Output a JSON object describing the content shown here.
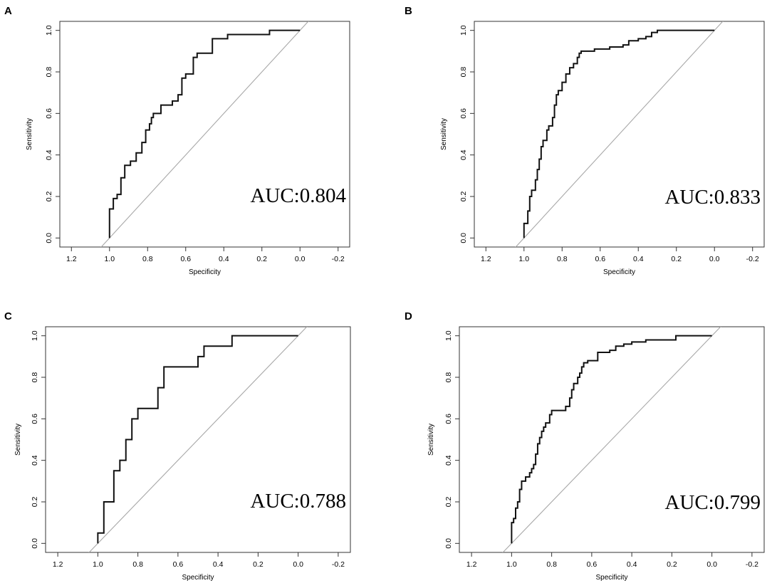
{
  "figure": {
    "colors": {
      "curve": "#111111",
      "diagonal": "#a8a8a8",
      "frame": "#333333",
      "text": "#000000"
    }
  },
  "chart_data": [
    {
      "type": "line",
      "panel": "A",
      "xlabel": "Specificity",
      "ylabel": "Sensitivity",
      "xlim": [
        1.2,
        -0.2
      ],
      "ylim": [
        0,
        1
      ],
      "x_ticks": [
        "1.2",
        "1.0",
        "0.8",
        "0.6",
        "0.4",
        "0.2",
        "0.0",
        "-0.2"
      ],
      "y_ticks": [
        "0.0",
        "0.2",
        "0.4",
        "0.6",
        "0.8",
        "1.0"
      ],
      "annotation": "AUC:0.804",
      "reference_line": {
        "from": [
          1,
          0
        ],
        "to": [
          0,
          1
        ]
      },
      "series": [
        {
          "name": "ROC",
          "points": [
            [
              1,
              0
            ],
            [
              1,
              0.14
            ],
            [
              0.98,
              0.14
            ],
            [
              0.98,
              0.19
            ],
            [
              0.96,
              0.19
            ],
            [
              0.96,
              0.21
            ],
            [
              0.94,
              0.21
            ],
            [
              0.94,
              0.29
            ],
            [
              0.92,
              0.29
            ],
            [
              0.92,
              0.35
            ],
            [
              0.89,
              0.35
            ],
            [
              0.89,
              0.37
            ],
            [
              0.86,
              0.37
            ],
            [
              0.86,
              0.41
            ],
            [
              0.83,
              0.41
            ],
            [
              0.83,
              0.46
            ],
            [
              0.81,
              0.46
            ],
            [
              0.81,
              0.52
            ],
            [
              0.79,
              0.52
            ],
            [
              0.79,
              0.55
            ],
            [
              0.78,
              0.55
            ],
            [
              0.78,
              0.58
            ],
            [
              0.77,
              0.58
            ],
            [
              0.77,
              0.6
            ],
            [
              0.73,
              0.6
            ],
            [
              0.73,
              0.64
            ],
            [
              0.67,
              0.64
            ],
            [
              0.67,
              0.66
            ],
            [
              0.64,
              0.66
            ],
            [
              0.64,
              0.69
            ],
            [
              0.62,
              0.69
            ],
            [
              0.62,
              0.77
            ],
            [
              0.6,
              0.77
            ],
            [
              0.6,
              0.79
            ],
            [
              0.56,
              0.79
            ],
            [
              0.56,
              0.87
            ],
            [
              0.54,
              0.87
            ],
            [
              0.54,
              0.89
            ],
            [
              0.46,
              0.89
            ],
            [
              0.46,
              0.96
            ],
            [
              0.38,
              0.96
            ],
            [
              0.38,
              0.98
            ],
            [
              0.16,
              0.98
            ],
            [
              0.16,
              1
            ],
            [
              0,
              1
            ]
          ]
        }
      ]
    },
    {
      "type": "line",
      "panel": "B",
      "xlabel": "Specificity",
      "ylabel": "Sensitivity",
      "xlim": [
        1.2,
        -0.2
      ],
      "ylim": [
        0,
        1
      ],
      "x_ticks": [
        "1.2",
        "1.0",
        "0.8",
        "0.6",
        "0.4",
        "0.2",
        "0.0",
        "-0.2"
      ],
      "y_ticks": [
        "0.0",
        "0.2",
        "0.4",
        "0.6",
        "0.8",
        "1.0"
      ],
      "annotation": "AUC:0.833",
      "reference_line": {
        "from": [
          1,
          0
        ],
        "to": [
          0,
          1
        ]
      },
      "series": [
        {
          "name": "ROC",
          "points": [
            [
              1,
              0
            ],
            [
              1,
              0.07
            ],
            [
              0.98,
              0.07
            ],
            [
              0.98,
              0.13
            ],
            [
              0.97,
              0.13
            ],
            [
              0.97,
              0.2
            ],
            [
              0.96,
              0.2
            ],
            [
              0.96,
              0.23
            ],
            [
              0.94,
              0.23
            ],
            [
              0.94,
              0.28
            ],
            [
              0.93,
              0.28
            ],
            [
              0.93,
              0.33
            ],
            [
              0.92,
              0.33
            ],
            [
              0.92,
              0.38
            ],
            [
              0.91,
              0.38
            ],
            [
              0.91,
              0.44
            ],
            [
              0.9,
              0.44
            ],
            [
              0.9,
              0.47
            ],
            [
              0.88,
              0.47
            ],
            [
              0.88,
              0.52
            ],
            [
              0.87,
              0.52
            ],
            [
              0.87,
              0.54
            ],
            [
              0.85,
              0.54
            ],
            [
              0.85,
              0.58
            ],
            [
              0.84,
              0.58
            ],
            [
              0.84,
              0.64
            ],
            [
              0.83,
              0.64
            ],
            [
              0.83,
              0.69
            ],
            [
              0.82,
              0.69
            ],
            [
              0.82,
              0.71
            ],
            [
              0.8,
              0.71
            ],
            [
              0.8,
              0.75
            ],
            [
              0.78,
              0.75
            ],
            [
              0.78,
              0.79
            ],
            [
              0.76,
              0.79
            ],
            [
              0.76,
              0.82
            ],
            [
              0.74,
              0.82
            ],
            [
              0.74,
              0.84
            ],
            [
              0.72,
              0.84
            ],
            [
              0.72,
              0.87
            ],
            [
              0.71,
              0.87
            ],
            [
              0.71,
              0.89
            ],
            [
              0.7,
              0.89
            ],
            [
              0.7,
              0.9
            ],
            [
              0.63,
              0.9
            ],
            [
              0.63,
              0.91
            ],
            [
              0.55,
              0.91
            ],
            [
              0.55,
              0.92
            ],
            [
              0.48,
              0.92
            ],
            [
              0.48,
              0.93
            ],
            [
              0.45,
              0.93
            ],
            [
              0.45,
              0.95
            ],
            [
              0.4,
              0.95
            ],
            [
              0.4,
              0.96
            ],
            [
              0.36,
              0.96
            ],
            [
              0.36,
              0.97
            ],
            [
              0.33,
              0.97
            ],
            [
              0.33,
              0.99
            ],
            [
              0.3,
              0.99
            ],
            [
              0.3,
              1
            ],
            [
              0,
              1
            ]
          ]
        }
      ]
    },
    {
      "type": "line",
      "panel": "C",
      "xlabel": "Specificity",
      "ylabel": "Sensitivity",
      "xlim": [
        1.2,
        -0.2
      ],
      "ylim": [
        0,
        1
      ],
      "x_ticks": [
        "1.2",
        "1.0",
        "0.8",
        "0.6",
        "0.4",
        "0.2",
        "0.0",
        "-0.2"
      ],
      "y_ticks": [
        "0.0",
        "0.2",
        "0.4",
        "0.6",
        "0.8",
        "1.0"
      ],
      "annotation": "AUC:0.788",
      "reference_line": {
        "from": [
          1,
          0
        ],
        "to": [
          0,
          1
        ]
      },
      "series": [
        {
          "name": "ROC",
          "points": [
            [
              1,
              0
            ],
            [
              1,
              0.05
            ],
            [
              0.97,
              0.05
            ],
            [
              0.97,
              0.2
            ],
            [
              0.92,
              0.2
            ],
            [
              0.92,
              0.35
            ],
            [
              0.89,
              0.35
            ],
            [
              0.89,
              0.4
            ],
            [
              0.86,
              0.4
            ],
            [
              0.86,
              0.5
            ],
            [
              0.83,
              0.5
            ],
            [
              0.83,
              0.6
            ],
            [
              0.8,
              0.6
            ],
            [
              0.8,
              0.65
            ],
            [
              0.7,
              0.65
            ],
            [
              0.7,
              0.75
            ],
            [
              0.67,
              0.75
            ],
            [
              0.67,
              0.85
            ],
            [
              0.5,
              0.85
            ],
            [
              0.5,
              0.9
            ],
            [
              0.47,
              0.9
            ],
            [
              0.47,
              0.95
            ],
            [
              0.33,
              0.95
            ],
            [
              0.33,
              1
            ],
            [
              0,
              1
            ]
          ]
        }
      ]
    },
    {
      "type": "line",
      "panel": "D",
      "xlabel": "Specificity",
      "ylabel": "Sensitivity",
      "xlim": [
        1.2,
        -0.2
      ],
      "ylim": [
        0,
        1
      ],
      "x_ticks": [
        "1.2",
        "1.0",
        "0.8",
        "0.6",
        "0.4",
        "0.2",
        "0.0",
        "-0.2"
      ],
      "y_ticks": [
        "0.0",
        "0.2",
        "0.4",
        "0.6",
        "0.8",
        "1.0"
      ],
      "annotation": "AUC:0.799",
      "reference_line": {
        "from": [
          1,
          0
        ],
        "to": [
          0,
          1
        ]
      },
      "series": [
        {
          "name": "ROC",
          "points": [
            [
              1,
              0
            ],
            [
              1,
              0.1
            ],
            [
              0.99,
              0.1
            ],
            [
              0.99,
              0.12
            ],
            [
              0.98,
              0.12
            ],
            [
              0.98,
              0.17
            ],
            [
              0.97,
              0.17
            ],
            [
              0.97,
              0.2
            ],
            [
              0.96,
              0.2
            ],
            [
              0.96,
              0.26
            ],
            [
              0.95,
              0.26
            ],
            [
              0.95,
              0.3
            ],
            [
              0.93,
              0.3
            ],
            [
              0.93,
              0.32
            ],
            [
              0.91,
              0.32
            ],
            [
              0.91,
              0.34
            ],
            [
              0.9,
              0.34
            ],
            [
              0.9,
              0.36
            ],
            [
              0.89,
              0.36
            ],
            [
              0.89,
              0.38
            ],
            [
              0.88,
              0.38
            ],
            [
              0.88,
              0.43
            ],
            [
              0.87,
              0.43
            ],
            [
              0.87,
              0.48
            ],
            [
              0.86,
              0.48
            ],
            [
              0.86,
              0.51
            ],
            [
              0.85,
              0.51
            ],
            [
              0.85,
              0.54
            ],
            [
              0.84,
              0.54
            ],
            [
              0.84,
              0.56
            ],
            [
              0.83,
              0.56
            ],
            [
              0.83,
              0.58
            ],
            [
              0.81,
              0.58
            ],
            [
              0.81,
              0.62
            ],
            [
              0.8,
              0.62
            ],
            [
              0.8,
              0.64
            ],
            [
              0.73,
              0.64
            ],
            [
              0.73,
              0.66
            ],
            [
              0.71,
              0.66
            ],
            [
              0.71,
              0.7
            ],
            [
              0.7,
              0.7
            ],
            [
              0.7,
              0.74
            ],
            [
              0.69,
              0.74
            ],
            [
              0.69,
              0.77
            ],
            [
              0.67,
              0.77
            ],
            [
              0.67,
              0.8
            ],
            [
              0.66,
              0.8
            ],
            [
              0.66,
              0.82
            ],
            [
              0.65,
              0.82
            ],
            [
              0.65,
              0.85
            ],
            [
              0.64,
              0.85
            ],
            [
              0.64,
              0.87
            ],
            [
              0.62,
              0.87
            ],
            [
              0.62,
              0.88
            ],
            [
              0.57,
              0.88
            ],
            [
              0.57,
              0.92
            ],
            [
              0.51,
              0.92
            ],
            [
              0.51,
              0.93
            ],
            [
              0.48,
              0.93
            ],
            [
              0.48,
              0.95
            ],
            [
              0.44,
              0.95
            ],
            [
              0.44,
              0.96
            ],
            [
              0.4,
              0.96
            ],
            [
              0.4,
              0.97
            ],
            [
              0.33,
              0.97
            ],
            [
              0.33,
              0.98
            ],
            [
              0.18,
              0.98
            ],
            [
              0.18,
              1
            ],
            [
              0,
              1
            ]
          ]
        }
      ]
    }
  ]
}
